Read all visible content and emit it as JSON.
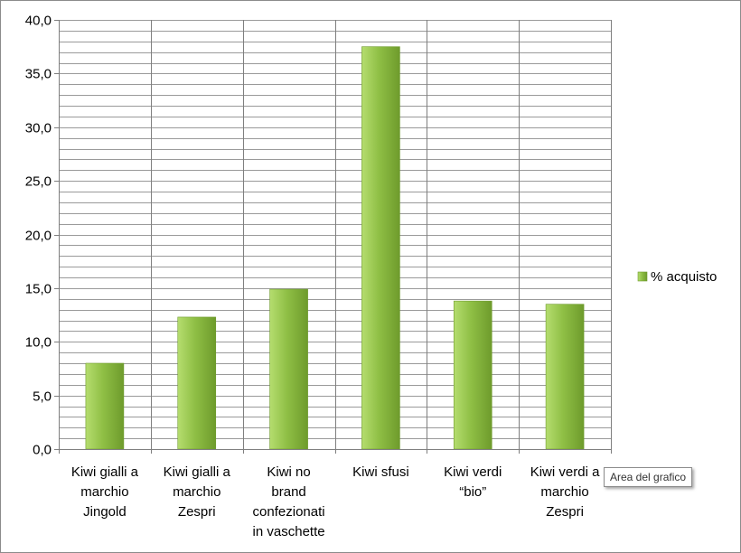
{
  "chart_data": {
    "type": "bar",
    "categories": [
      [
        "Kiwi gialli a",
        "marchio",
        "Jingold"
      ],
      [
        "Kiwi gialli a",
        "marchio",
        "Zespri"
      ],
      [
        "Kiwi no",
        "brand",
        "confezionati",
        "in vaschette"
      ],
      [
        "Kiwi sfusi"
      ],
      [
        "Kiwi verdi",
        "“bio”"
      ],
      [
        "Kiwi verdi a",
        "marchio",
        "Zespri"
      ]
    ],
    "series": [
      {
        "name": "% acquisto",
        "values": [
          8.0,
          12.3,
          14.9,
          37.5,
          13.8,
          13.5
        ]
      }
    ],
    "ylim": [
      0,
      40
    ],
    "y_major_step": 5,
    "y_minor_step": 1,
    "y_tick_labels": [
      "0,0",
      "5,0",
      "10,0",
      "15,0",
      "20,0",
      "25,0",
      "30,0",
      "35,0",
      "40,0"
    ],
    "grid": true,
    "legend": "right",
    "title": "",
    "xlabel": "",
    "ylabel": "",
    "colors": {
      "bar_light": "#b5dd6f",
      "bar_mid": "#8fbf45",
      "bar_dark": "#6e9b2c",
      "grid": "#9a9a9a",
      "axis": "#7f7f7f"
    }
  },
  "tooltip": {
    "label": "Area del grafico"
  }
}
